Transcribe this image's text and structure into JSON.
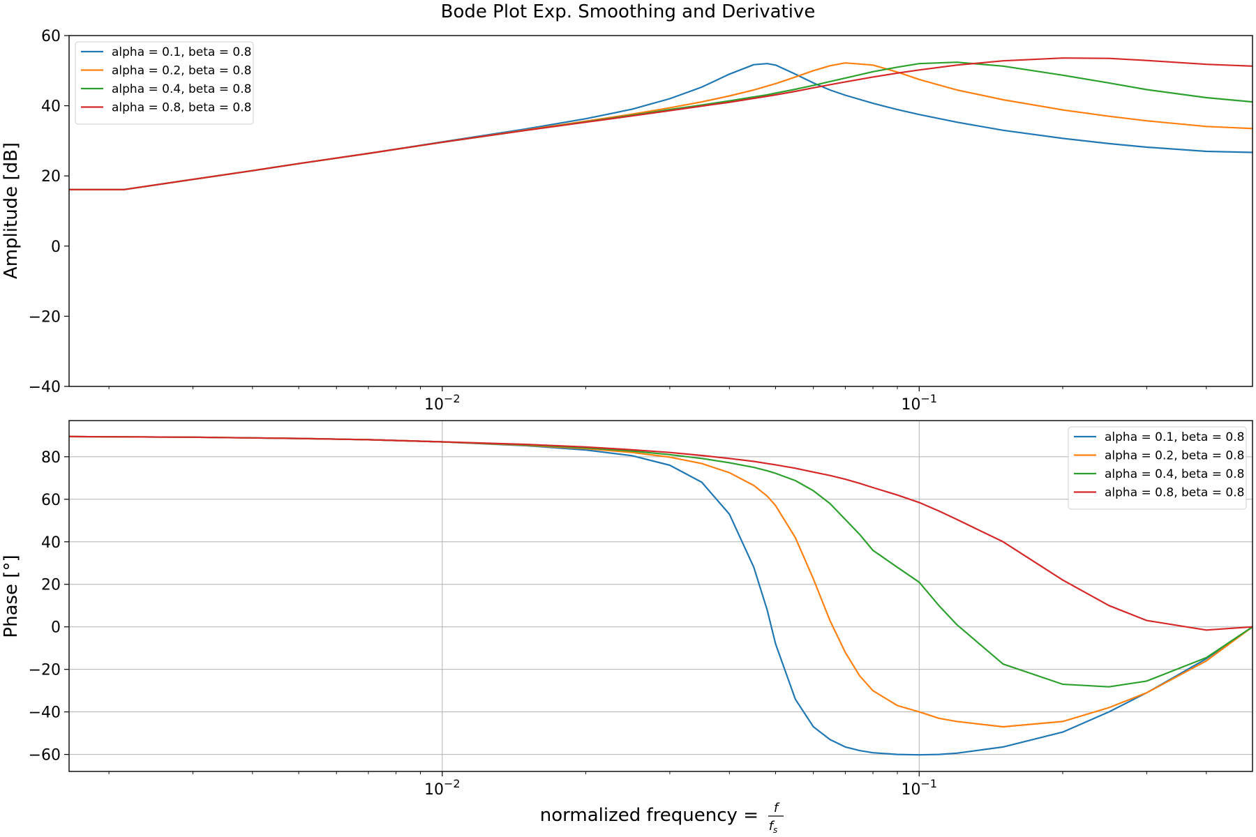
{
  "figure": {
    "title": "Bode Plot Exp. Smoothing and Derivative",
    "xlabel_main": "normalized frequency = ",
    "xlabel_frac_num": "f",
    "xlabel_frac_den": "f",
    "xlabel_frac_den_sub": "s"
  },
  "chart_data": [
    {
      "type": "line",
      "title": "Bode Plot Exp. Smoothing and Derivative",
      "xlabel": "",
      "ylabel": "Amplitude [dB]",
      "xscale": "log",
      "xlim": [
        0.00165,
        0.5
      ],
      "ylim": [
        -40,
        60
      ],
      "yticks": [
        -40,
        -20,
        0,
        20,
        40,
        60
      ],
      "ytick_labels": [
        "−40",
        "−20",
        "0",
        "20",
        "40",
        "60"
      ],
      "xticks": [
        0.01,
        0.1
      ],
      "xtick_labels": [
        "10",
        "10"
      ],
      "xtick_exponents": [
        "−2",
        "−1"
      ],
      "grid": false,
      "legend_position": "upper-left",
      "x": [
        0.00165,
        0.00215,
        0.003,
        0.004,
        0.005,
        0.007,
        0.01,
        0.015,
        0.02,
        0.025,
        0.03,
        0.035,
        0.04,
        0.045,
        0.048,
        0.05,
        0.055,
        0.06,
        0.065,
        0.07,
        0.08,
        0.09,
        0.1,
        0.12,
        0.15,
        0.2,
        0.25,
        0.3,
        0.4,
        0.5
      ],
      "series": [
        {
          "name": "alpha = 0.1, beta = 0.8",
          "color": "#1f77b4",
          "values": [
            16.1,
            16.1,
            19.0,
            21.5,
            23.5,
            26.4,
            29.7,
            33.4,
            36.3,
            39.0,
            42.0,
            45.3,
            49.0,
            51.7,
            52.0,
            51.6,
            49.0,
            46.5,
            44.5,
            43.0,
            40.7,
            38.9,
            37.5,
            35.3,
            33.0,
            30.7,
            29.2,
            28.2,
            27.0,
            26.7
          ]
        },
        {
          "name": "alpha = 0.2, beta = 0.8",
          "color": "#ff7f0e",
          "values": [
            16.1,
            16.1,
            19.0,
            21.5,
            23.5,
            26.4,
            29.6,
            33.1,
            35.6,
            37.6,
            39.4,
            41.1,
            42.8,
            44.5,
            45.6,
            46.3,
            48.2,
            50.0,
            51.4,
            52.2,
            51.6,
            49.6,
            47.5,
            44.5,
            41.7,
            38.8,
            37.0,
            35.7,
            34.1,
            33.5
          ]
        },
        {
          "name": "alpha = 0.4, beta = 0.8",
          "color": "#2ca02c",
          "values": [
            16.1,
            16.1,
            19.0,
            21.5,
            23.5,
            26.4,
            29.6,
            33.0,
            35.4,
            37.3,
            38.9,
            40.2,
            41.4,
            42.5,
            43.1,
            43.6,
            44.7,
            45.8,
            46.9,
            47.9,
            49.7,
            51.0,
            52.0,
            52.4,
            51.3,
            48.7,
            46.5,
            44.6,
            42.3,
            41.1
          ]
        },
        {
          "name": "alpha = 0.8, beta = 0.8",
          "color": "#d62728",
          "values": [
            16.1,
            16.1,
            19.0,
            21.5,
            23.5,
            26.4,
            29.6,
            33.0,
            35.3,
            37.1,
            38.6,
            39.9,
            41.0,
            42.1,
            42.7,
            43.1,
            44.1,
            45.1,
            46.0,
            46.8,
            48.2,
            49.3,
            50.2,
            51.6,
            52.8,
            53.6,
            53.5,
            52.9,
            51.8,
            51.3
          ]
        }
      ]
    },
    {
      "type": "line",
      "title": "",
      "xlabel": "normalized frequency = f/fs",
      "ylabel": "Phase [°]",
      "xscale": "log",
      "xlim": [
        0.00165,
        0.5
      ],
      "ylim": [
        -68,
        97
      ],
      "yticks": [
        -60,
        -40,
        -20,
        0,
        20,
        40,
        60,
        80
      ],
      "ytick_labels": [
        "−60",
        "−40",
        "−20",
        "0",
        "20",
        "40",
        "60",
        "80"
      ],
      "xticks": [
        0.01,
        0.1
      ],
      "xtick_labels": [
        "10",
        "10"
      ],
      "xtick_exponents": [
        "−2",
        "−1"
      ],
      "grid": true,
      "legend_position": "upper-right",
      "x": [
        0.00165,
        0.003,
        0.005,
        0.007,
        0.01,
        0.015,
        0.02,
        0.025,
        0.03,
        0.035,
        0.04,
        0.045,
        0.048,
        0.05,
        0.055,
        0.06,
        0.065,
        0.07,
        0.075,
        0.08,
        0.09,
        0.1,
        0.11,
        0.12,
        0.15,
        0.2,
        0.25,
        0.3,
        0.4,
        0.5
      ],
      "series": [
        {
          "name": "alpha = 0.1, beta = 0.8",
          "color": "#1f77b4",
          "values": [
            89.5,
            89.2,
            88.6,
            88.0,
            87.0,
            85.2,
            83.2,
            80.5,
            76.0,
            68.0,
            53.0,
            28.0,
            8.0,
            -8.0,
            -34.0,
            -47.0,
            -53.0,
            -56.5,
            -58.2,
            -59.2,
            -60.0,
            -60.2,
            -60.0,
            -59.4,
            -56.5,
            -49.5,
            -40.0,
            -31.0,
            -15.0,
            0.0
          ]
        },
        {
          "name": "alpha = 0.2, beta = 0.8",
          "color": "#ff7f0e",
          "values": [
            89.5,
            89.2,
            88.6,
            88.0,
            87.0,
            85.4,
            83.8,
            82.0,
            79.8,
            76.8,
            72.5,
            66.5,
            61.5,
            57.0,
            42.0,
            22.5,
            3.0,
            -12.0,
            -23.0,
            -30.0,
            -37.0,
            -40.0,
            -43.0,
            -44.5,
            -47.0,
            -44.5,
            -38.0,
            -31.0,
            -16.0,
            0.0
          ]
        },
        {
          "name": "alpha = 0.4, beta = 0.8",
          "color": "#2ca02c",
          "values": [
            89.5,
            89.2,
            88.6,
            88.0,
            87.0,
            85.6,
            84.2,
            82.7,
            81.0,
            79.2,
            77.2,
            75.0,
            73.4,
            72.2,
            68.8,
            64.0,
            58.0,
            50.5,
            43.5,
            36.0,
            28.0,
            21.0,
            10.0,
            1.0,
            -17.5,
            -27.0,
            -28.2,
            -25.5,
            -14.5,
            0.0
          ]
        },
        {
          "name": "alpha = 0.8, beta = 0.8",
          "color": "#d62728",
          "values": [
            89.5,
            89.2,
            88.6,
            88.0,
            87.0,
            85.8,
            84.6,
            83.3,
            82.0,
            80.6,
            79.2,
            77.8,
            76.8,
            76.2,
            74.6,
            72.8,
            71.2,
            69.4,
            67.5,
            65.5,
            62.0,
            58.5,
            54.5,
            50.5,
            40.0,
            22.0,
            10.0,
            3.0,
            -1.5,
            0.0
          ]
        }
      ]
    }
  ]
}
